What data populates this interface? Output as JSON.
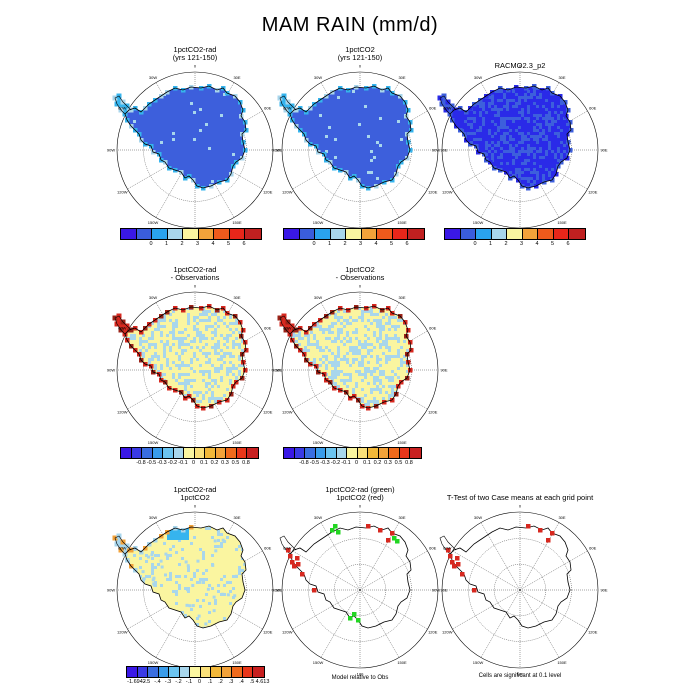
{
  "title": "MAM RAIN (mm/d)",
  "colors": {
    "fields": {
      "blue": "#3d5fdc",
      "deepblue": "#2a2ae8",
      "lightblue": "#a8d6ec",
      "cream": "#faf5a0",
      "orange": "#f2a23a",
      "red": "#d7281f",
      "darkred": "#9b2318",
      "green": "#22d622",
      "cyan": "#36b4ee"
    }
  },
  "longitude_labels": [
    "0",
    "30E",
    "60E",
    "90E",
    "120E",
    "150E",
    "180",
    "150W",
    "120W",
    "90W",
    "60W",
    "30W"
  ],
  "panels": [
    {
      "id": "p1",
      "title": [
        "1pctCO2-rad",
        "(yrs 121-150)"
      ],
      "fill": "blue",
      "speckle": "lightblue",
      "speckle_density": 0.02,
      "coast": "cyan",
      "coast2": "lightblue"
    },
    {
      "id": "p2",
      "title": [
        "1pctCO2",
        "(yrs 121-150)"
      ],
      "fill": "blue",
      "speckle": "lightblue",
      "speckle_density": 0.02,
      "coast": "cyan",
      "coast2": "lightblue"
    },
    {
      "id": "p3",
      "title": [
        "RACMO2.3_p2"
      ],
      "fill": "deepblue",
      "speckle": "blue",
      "speckle_density": 0.35,
      "coast": "blue",
      "coast2": "deepblue"
    },
    {
      "id": "p4",
      "title": [
        "1pctCO2-rad",
        "- Observations"
      ],
      "fill": "cream",
      "speckle": "lightblue",
      "speckle_density": 0.4,
      "coast": "red",
      "coast2": "darkred"
    },
    {
      "id": "p5",
      "title": [
        "1pctCO2",
        "- Observations"
      ],
      "fill": "cream",
      "speckle": "lightblue",
      "speckle_density": 0.4,
      "coast": "red",
      "coast2": "darkred"
    },
    {
      "id": "p6",
      "title": [
        "1pctCO2-rad",
        "1pctCO2"
      ],
      "fill": "cream",
      "speckle": "lightblue",
      "speckle_density": 0.12,
      "coast": "lightblue",
      "coast2": "orange",
      "blue_patch": true
    },
    {
      "id": "p7",
      "title": [
        "1pctCO2-rad (green)",
        "1pctCO2 (red)"
      ],
      "fill": "none",
      "markers": [
        "green",
        "red"
      ]
    },
    {
      "id": "p8",
      "title": [
        "T-Test of two Case means at each grid point"
      ],
      "fill": "none",
      "markers": [
        "red"
      ]
    }
  ],
  "legends": [
    {
      "id": "lg1",
      "colors": [
        "#3a18e6",
        "#3a5ddc",
        "#2aa2ee",
        "#a8d6ec",
        "#faf5a0",
        "#f2a23a",
        "#ef5a1c",
        "#e8261a",
        "#c02020"
      ],
      "labels": [
        "0",
        "1",
        "2",
        "3",
        "4",
        "5",
        "6"
      ]
    },
    {
      "id": "lg2",
      "colors": [
        "#3a18e6",
        "#3a5ddc",
        "#2aa2ee",
        "#a8d6ec",
        "#faf5a0",
        "#f2a23a",
        "#ef5a1c",
        "#e8261a",
        "#c02020"
      ],
      "labels": [
        "0",
        "1",
        "2",
        "3",
        "4",
        "5",
        "6"
      ]
    },
    {
      "id": "lg3",
      "colors": [
        "#3a18e6",
        "#3a5ddc",
        "#2aa2ee",
        "#a8d6ec",
        "#faf5a0",
        "#f2a23a",
        "#ef5a1c",
        "#e8261a",
        "#c02020"
      ],
      "labels": [
        "0",
        "1",
        "2",
        "3",
        "4",
        "5",
        "6"
      ]
    },
    {
      "id": "lg4",
      "colors": [
        "#3a18e6",
        "#3a3ae6",
        "#3a6ee0",
        "#3a9cea",
        "#6cc4f0",
        "#a8d6ec",
        "#faf5a0",
        "#fae07a",
        "#f2b83a",
        "#f2a23a",
        "#ef6a1c",
        "#e8361a",
        "#c82020"
      ],
      "labels": [
        "-0.8",
        "-0.5",
        "-0.3",
        "-0.2",
        "-0.1",
        "0",
        "0.1",
        "0.2",
        "0.3",
        "0.5",
        "0.8"
      ]
    },
    {
      "id": "lg5",
      "colors": [
        "#3a18e6",
        "#3a3ae6",
        "#3a6ee0",
        "#3a9cea",
        "#6cc4f0",
        "#a8d6ec",
        "#faf5a0",
        "#fae07a",
        "#f2b83a",
        "#f2a23a",
        "#ef6a1c",
        "#e8361a",
        "#c82020"
      ],
      "labels": [
        "-0.8",
        "-0.5",
        "-0.3",
        "-0.2",
        "-0.1",
        "0",
        "0.1",
        "0.2",
        "0.3",
        "0.5",
        "0.8"
      ]
    },
    {
      "id": "lg6",
      "colors": [
        "#3a18e6",
        "#3a3ae6",
        "#3a6ee0",
        "#3a9cea",
        "#6cc4f0",
        "#a8d6ec",
        "#faf5a0",
        "#fae07a",
        "#f2b83a",
        "#f2a23a",
        "#ef6a1c",
        "#e8361a",
        "#c82020"
      ],
      "labels": [
        "-1.6942",
        "-.5",
        "-.4",
        "-.3",
        "-.2",
        "-.1",
        "0",
        ".1",
        ".2",
        ".3",
        ".4",
        ".5",
        "4.613"
      ]
    }
  ],
  "footnotes": {
    "p7": "Model relative to Obs",
    "p8": "Cells are significant at 0.1 level"
  }
}
